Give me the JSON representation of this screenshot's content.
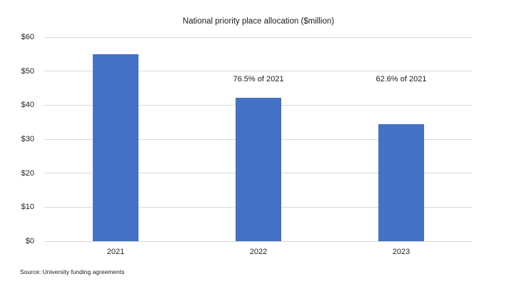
{
  "title": "National priority place allocation ($million)",
  "source": "Source: University funding agreements",
  "colors": {
    "bar": "#4472c4",
    "gridline": "#d9d9d9",
    "text": "#262626",
    "background": "#ffffff"
  },
  "chart_data": {
    "type": "bar",
    "title": "National priority place allocation ($million)",
    "categories": [
      "2021",
      "2022",
      "2023"
    ],
    "values": [
      55.0,
      42.1,
      34.4
    ],
    "annotations": [
      {
        "category": "2022",
        "text": "76.5% of 2021"
      },
      {
        "category": "2023",
        "text": "62.6% of 2021"
      }
    ],
    "xlabel": "",
    "ylabel": "",
    "ylim": [
      0,
      60
    ],
    "ytick_step": 10,
    "ytick_labels": [
      "$0",
      "$10",
      "$20",
      "$30",
      "$40",
      "$50",
      "$60"
    ],
    "grid": true,
    "legend": false,
    "source": "Source: University funding agreements"
  }
}
